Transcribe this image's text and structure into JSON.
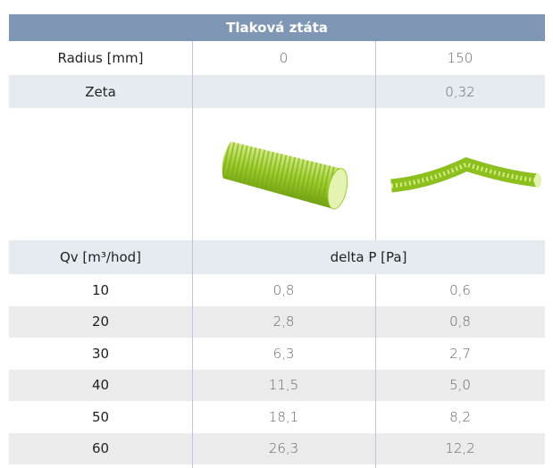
{
  "header": {
    "title": "Tlaková ztáta"
  },
  "radius": {
    "label": "Radius [mm]",
    "values": [
      "0",
      "150"
    ]
  },
  "zeta": {
    "label": "Zeta",
    "value": "0,32"
  },
  "flow_header": {
    "label": "Qv [m³/hod]",
    "result": "delta P [Pa]"
  },
  "table": {
    "rows": [
      [
        "10",
        "0,8",
        "0,6"
      ],
      [
        "20",
        "2,8",
        "0,8"
      ],
      [
        "30",
        "6,3",
        "2,7"
      ],
      [
        "40",
        "11,5",
        "5,0"
      ],
      [
        "50",
        "18,1",
        "8,2"
      ],
      [
        "60",
        "26,3",
        "12,2"
      ]
    ]
  }
}
